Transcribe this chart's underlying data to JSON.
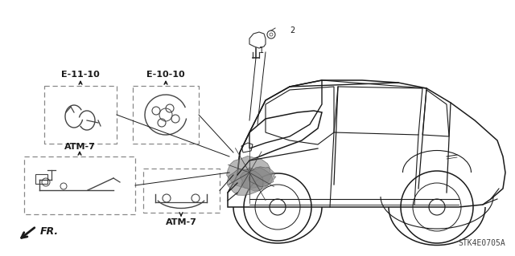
{
  "bg_color": "#ffffff",
  "fig_width": 6.4,
  "fig_height": 3.19,
  "dpi": 100,
  "watermark": "STK4E0705A",
  "lc": "#1a1a1a",
  "labels": {
    "e11": "E-11-10",
    "e10": "E-10-10",
    "atm7_top": "ATM-7",
    "atm7_bot": "ATM-7",
    "fr": "FR.",
    "num1": "1",
    "num2": "2"
  }
}
